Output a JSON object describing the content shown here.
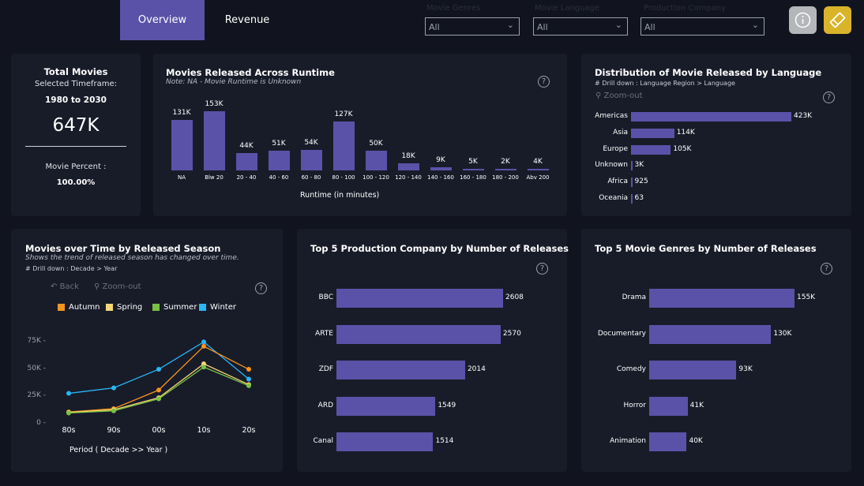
{
  "tabs": [
    {
      "label": "Overview",
      "active": true
    },
    {
      "label": "Revenue",
      "active": false
    }
  ],
  "filters": [
    {
      "label": "Movie Genres",
      "value": "All"
    },
    {
      "label": "Movie Language",
      "value": "All"
    },
    {
      "label": "Production Company",
      "value": "All"
    }
  ],
  "buttons": {
    "info_icon": "info-icon",
    "clear_icon": "eraser-icon",
    "clear_color": "#d9b42a",
    "info_color": "#b4b6ba"
  },
  "kpi": {
    "title": "Total Movies",
    "subtitle": "Selected Timeframe:",
    "timeframe": "1980 to 2030",
    "total": "647K",
    "percent_label": "Movie Percent :",
    "percent": "100.00%"
  },
  "colors": {
    "bar": "#5a52a8",
    "autumn": "#f7941d",
    "spring": "#f7d774",
    "summer": "#7ac143",
    "winter": "#29b6f6"
  },
  "chart_data": [
    {
      "id": "runtime",
      "type": "bar",
      "title": "Movies Released Across Runtime",
      "subtitle": "Note: NA - Movie Runtime is Unknown",
      "xlabel": "Runtime (in minutes)",
      "categories": [
        "NA",
        "Blw 20",
        "20 - 40",
        "40 - 60",
        "60 - 80",
        "80 - 100",
        "100 - 120",
        "120 - 140",
        "140 - 160",
        "160 - 180",
        "180 - 200",
        "Abv 200"
      ],
      "values": [
        131,
        153,
        44,
        51,
        54,
        127,
        50,
        18,
        9,
        5,
        2,
        4
      ],
      "labels": [
        "131K",
        "153K",
        "44K",
        "51K",
        "54K",
        "127K",
        "50K",
        "18K",
        "9K",
        "5K",
        "2K",
        "4K"
      ]
    },
    {
      "id": "language",
      "type": "bar",
      "orientation": "horizontal",
      "title": "Distribution of Movie Released by Language",
      "drill": "# Drill down : Language Region > Language",
      "zoom_label": "Zoom-out",
      "categories": [
        "Americas",
        "Asia",
        "Europe",
        "Unknown",
        "Africa",
        "Oceania"
      ],
      "values": [
        423000,
        114000,
        105000,
        3000,
        925,
        63
      ],
      "labels": [
        "423K",
        "114K",
        "105K",
        "3K",
        "925",
        "63"
      ]
    },
    {
      "id": "season",
      "type": "line",
      "title": "Movies over Time by Released Season",
      "subtitle": "Shows the trend of released season has changed over time.",
      "drill": "# Drill down : Decade > Year",
      "back_label": "Back",
      "zoom_label": "Zoom-out",
      "xlabel": "Period ( Decade >> Year )",
      "x": [
        "80s",
        "90s",
        "00s",
        "10s",
        "20s"
      ],
      "yticks": [
        "0",
        "25K",
        "50K",
        "75K"
      ],
      "ylim": [
        0,
        75000
      ],
      "legend": "top",
      "series": [
        {
          "name": "Autumn",
          "color": "#f7941d",
          "values": [
            10000,
            13000,
            30000,
            70000,
            49000
          ]
        },
        {
          "name": "Spring",
          "color": "#f7d774",
          "values": [
            9500,
            12000,
            23000,
            54000,
            35000
          ]
        },
        {
          "name": "Summer",
          "color": "#7ac143",
          "values": [
            9000,
            11000,
            22000,
            51000,
            34000
          ]
        },
        {
          "name": "Winter",
          "color": "#29b6f6",
          "values": [
            27000,
            32000,
            49000,
            74000,
            40000
          ]
        }
      ]
    },
    {
      "id": "production",
      "type": "bar",
      "orientation": "horizontal",
      "title": "Top 5 Production Company by Number of Releases",
      "categories": [
        "BBC",
        "ARTE",
        "ZDF",
        "ARD",
        "Canal"
      ],
      "values": [
        2608,
        2570,
        2014,
        1549,
        1514
      ],
      "labels": [
        "2608",
        "2570",
        "2014",
        "1549",
        "1514"
      ]
    },
    {
      "id": "genres",
      "type": "bar",
      "orientation": "horizontal",
      "title": "Top 5 Movie Genres by Number of Releases",
      "categories": [
        "Drama",
        "Documentary",
        "Comedy",
        "Horror",
        "Animation"
      ],
      "values": [
        155000,
        130000,
        93000,
        41000,
        40000
      ],
      "labels": [
        "155K",
        "130K",
        "93K",
        "41K",
        "40K"
      ]
    }
  ]
}
